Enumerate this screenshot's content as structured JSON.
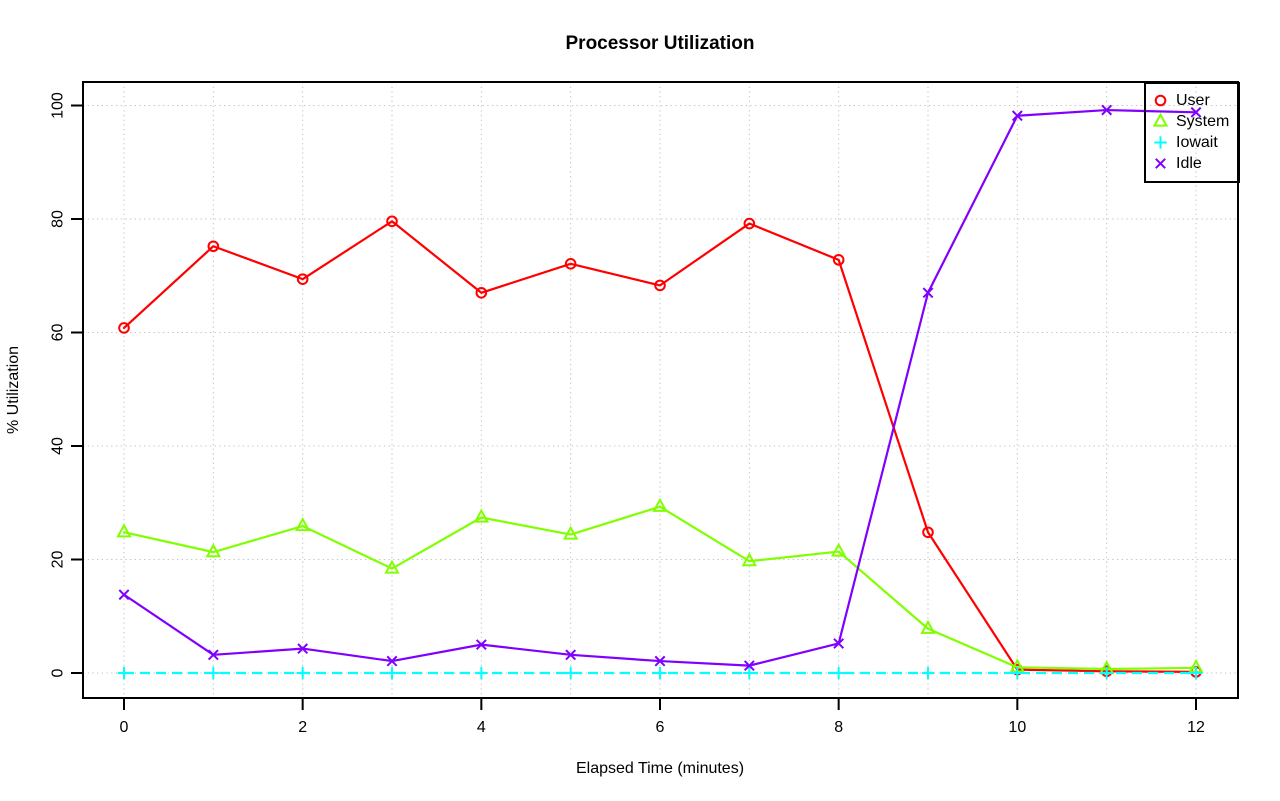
{
  "chart_data": {
    "type": "line",
    "title": "Processor Utilization",
    "xlabel": "Elapsed Time (minutes)",
    "ylabel": "% Utilization",
    "x": [
      0,
      1,
      2,
      3,
      4,
      5,
      6,
      7,
      8,
      9,
      10,
      11,
      12
    ],
    "xlim": [
      0,
      12
    ],
    "ylim": [
      0,
      100
    ],
    "x_ticks": [
      0,
      2,
      4,
      6,
      8,
      10,
      12
    ],
    "y_ticks": [
      0,
      20,
      40,
      60,
      80,
      100
    ],
    "grid": {
      "x_lines": [
        0,
        1,
        2,
        3,
        4,
        5,
        6,
        7,
        8,
        9,
        10,
        11,
        12
      ],
      "y_lines": [
        0,
        20,
        40,
        60,
        80,
        100
      ],
      "style": "dotted",
      "color": "#c2c2c2"
    },
    "legend_position": "top-right",
    "series": [
      {
        "name": "User",
        "color": "#FF0000",
        "marker": "circle",
        "line": "solid",
        "values": [
          60.8,
          75.2,
          69.4,
          79.6,
          67.0,
          72.1,
          68.3,
          79.2,
          72.8,
          24.8,
          0.6,
          0.3,
          0.2
        ]
      },
      {
        "name": "System",
        "color": "#80FF00",
        "marker": "triangle",
        "line": "solid",
        "values": [
          24.8,
          21.3,
          25.9,
          18.4,
          27.4,
          24.4,
          29.3,
          19.7,
          21.4,
          7.8,
          1.0,
          0.7,
          0.9
        ]
      },
      {
        "name": "Iowait",
        "color": "#00FFFF",
        "marker": "plus",
        "line": "dashed",
        "values": [
          0,
          0,
          0,
          0,
          0,
          0,
          0,
          0,
          0,
          0,
          0,
          0,
          0
        ]
      },
      {
        "name": "Idle",
        "color": "#8000FF",
        "marker": "x",
        "line": "solid",
        "values": [
          13.8,
          3.2,
          4.3,
          2.1,
          5.0,
          3.2,
          2.1,
          1.3,
          5.2,
          67.0,
          98.2,
          99.2,
          98.8
        ]
      }
    ]
  }
}
